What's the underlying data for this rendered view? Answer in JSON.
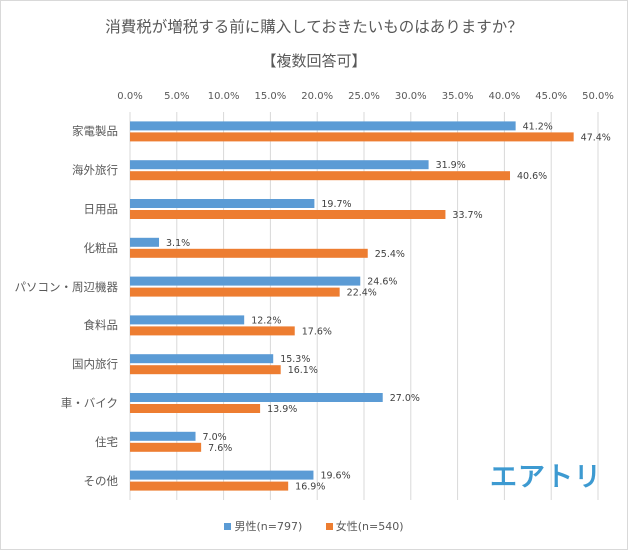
{
  "chart_data": {
    "type": "bar",
    "orientation": "horizontal",
    "title": "消費税が増税する前に購入しておきたいものはありますか？",
    "subtitle": "【複数回答可】",
    "xlabel": "",
    "ylabel": "",
    "xlim": [
      0,
      50
    ],
    "grid": true,
    "legend_position": "bottom",
    "tick_labels": [
      "0.0%",
      "5.0%",
      "10.0%",
      "15.0%",
      "20.0%",
      "25.0%",
      "30.0%",
      "35.0%",
      "40.0%",
      "45.0%",
      "50.0%"
    ],
    "categories": [
      "家電製品",
      "海外旅行",
      "日用品",
      "化粧品",
      "パソコン・周辺機器",
      "食料品",
      "国内旅行",
      "車・バイク",
      "住宅",
      "その他"
    ],
    "series": [
      {
        "name": "男性(n=797)",
        "color": "#5b9bd5",
        "values": [
          41.2,
          31.9,
          19.7,
          3.1,
          24.6,
          12.2,
          15.3,
          27.0,
          7.0,
          19.6
        ],
        "labels": [
          "41.2%",
          "31.9%",
          "19.7%",
          "3.1%",
          "24.6%",
          "12.2%",
          "15.3%",
          "27.0%",
          "7.0%",
          "19.6%"
        ]
      },
      {
        "name": "女性(n=540)",
        "color": "#ed7d31",
        "values": [
          47.4,
          40.6,
          33.7,
          25.4,
          22.4,
          17.6,
          16.1,
          13.9,
          7.6,
          16.9
        ],
        "labels": [
          "47.4%",
          "40.6%",
          "33.7%",
          "25.4%",
          "22.4%",
          "17.6%",
          "16.1%",
          "13.9%",
          "7.6%",
          "16.9%"
        ]
      }
    ]
  },
  "logo": {
    "text": "エアトリ",
    "color": "#3d9ad1"
  },
  "colors": {
    "grid": "#d9d9d9",
    "text": "#595959"
  }
}
